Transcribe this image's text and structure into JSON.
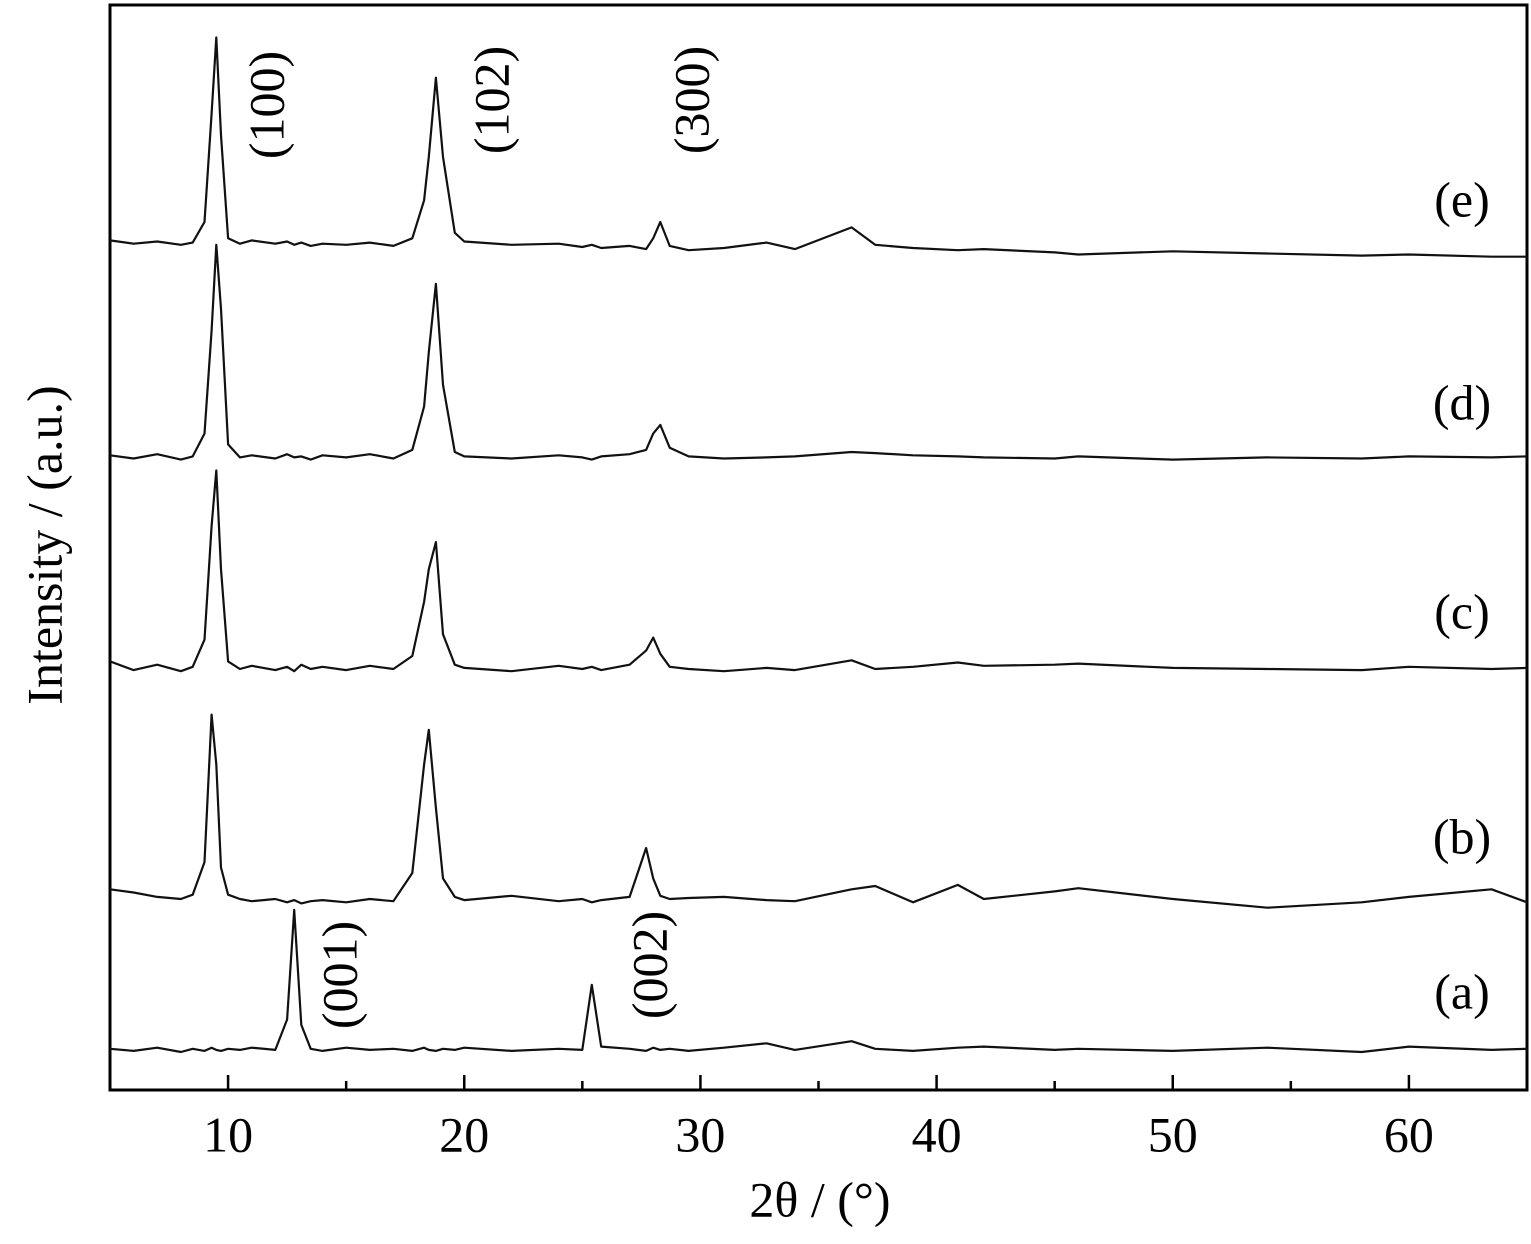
{
  "chart_data": {
    "type": "line",
    "x_label": "2θ / (°)",
    "y_label": "Intensity / (a.u.)",
    "x": [
      5,
      6,
      7,
      8,
      8.5,
      9,
      9.3,
      9.5,
      9.7,
      10,
      10.5,
      11,
      12,
      12.5,
      12.8,
      13.1,
      13.5,
      14,
      15,
      16,
      17,
      17.8,
      18.3,
      18.5,
      18.8,
      19.1,
      19.6,
      20,
      22,
      24,
      25,
      25.4,
      25.8,
      27,
      27.7,
      28,
      28.3,
      28.7,
      29.5,
      31,
      32.8,
      34,
      36.4,
      37.4,
      39,
      40.9,
      42,
      45,
      46,
      50,
      54,
      58,
      60,
      63.5,
      65
    ],
    "series": [
      {
        "name": "(a)",
        "color": "#111111",
        "values": [
          3.8,
          3.6,
          3.9,
          3.5,
          3.8,
          3.6,
          3.9,
          3.7,
          3.6,
          3.8,
          3.7,
          3.9,
          3.7,
          6.5,
          16.6,
          6.0,
          3.8,
          3.6,
          3.9,
          3.7,
          3.8,
          3.6,
          3.9,
          3.7,
          3.6,
          3.8,
          3.7,
          3.9,
          3.6,
          3.8,
          3.7,
          9.7,
          4.0,
          3.8,
          3.6,
          3.9,
          3.7,
          3.8,
          3.6,
          3.9,
          4.3,
          3.7,
          4.5,
          3.8,
          3.6,
          3.9,
          4.0,
          3.7,
          3.8,
          3.6,
          3.9,
          3.5,
          4.0,
          3.7,
          3.8
        ]
      },
      {
        "name": "(b)",
        "color": "#111111",
        "values": [
          18.5,
          18.2,
          17.8,
          17.6,
          18.0,
          21.0,
          34.6,
          30.0,
          20.5,
          18.0,
          17.6,
          17.4,
          17.6,
          17.3,
          17.5,
          17.2,
          17.4,
          17.5,
          17.3,
          17.6,
          17.4,
          20.0,
          30.0,
          33.2,
          26.0,
          19.5,
          17.8,
          17.5,
          17.9,
          17.4,
          17.6,
          17.3,
          17.5,
          17.8,
          22.3,
          19.5,
          17.9,
          17.6,
          17.7,
          17.8,
          17.5,
          17.4,
          18.5,
          18.8,
          17.3,
          18.9,
          17.6,
          18.3,
          18.6,
          17.6,
          16.8,
          17.3,
          17.8,
          18.5,
          17.3
        ]
      },
      {
        "name": "(c)",
        "color": "#111111",
        "values": [
          39.5,
          38.7,
          39.2,
          38.6,
          39.0,
          41.5,
          52.0,
          57.1,
          48.0,
          39.5,
          38.8,
          39.1,
          38.7,
          39.0,
          38.6,
          39.2,
          38.8,
          39.0,
          38.7,
          39.1,
          38.8,
          40.0,
          45.0,
          48.0,
          50.5,
          42.0,
          39.2,
          38.9,
          38.6,
          39.1,
          38.8,
          39.0,
          38.7,
          39.2,
          40.5,
          41.7,
          40.2,
          39.0,
          38.8,
          38.6,
          38.9,
          38.7,
          39.6,
          38.8,
          39.0,
          39.4,
          39.1,
          39.2,
          39.3,
          38.9,
          38.8,
          38.7,
          39.0,
          38.8,
          38.9
        ]
      },
      {
        "name": "(d)",
        "color": "#111111",
        "values": [
          58.5,
          58.2,
          58.6,
          58.1,
          58.4,
          60.5,
          70.0,
          77.9,
          72.0,
          59.5,
          58.3,
          58.5,
          58.2,
          58.6,
          58.3,
          58.4,
          58.1,
          58.5,
          58.3,
          58.6,
          58.2,
          59.0,
          63.0,
          68.0,
          74.3,
          65.0,
          58.8,
          58.4,
          58.2,
          58.5,
          58.3,
          58.1,
          58.4,
          58.6,
          59.0,
          60.5,
          61.3,
          59.2,
          58.4,
          58.2,
          58.3,
          58.4,
          58.8,
          58.7,
          58.5,
          58.4,
          58.3,
          58.2,
          58.4,
          58.1,
          58.3,
          58.2,
          58.4,
          58.3,
          58.4
        ]
      },
      {
        "name": "(e)",
        "color": "#111111",
        "values": [
          78.3,
          78.0,
          78.2,
          77.9,
          78.1,
          80.0,
          90.0,
          97.0,
          88.0,
          78.5,
          78.0,
          78.3,
          78.0,
          78.2,
          77.9,
          78.1,
          77.8,
          78.0,
          77.9,
          78.1,
          77.8,
          78.5,
          82.0,
          86.0,
          93.3,
          86.0,
          79.0,
          78.2,
          77.9,
          78.0,
          77.7,
          77.9,
          77.6,
          77.8,
          77.5,
          78.5,
          80.0,
          77.8,
          77.4,
          77.6,
          78.1,
          77.5,
          79.5,
          77.9,
          77.6,
          77.4,
          77.5,
          77.2,
          77.0,
          77.3,
          77.1,
          76.9,
          77.0,
          76.8,
          76.8
        ]
      }
    ],
    "annotations": [
      "(100)",
      "(102)",
      "(300)",
      "(001)",
      "(002)"
    ],
    "xlim": [
      5,
      65
    ],
    "xticks": [
      10,
      20,
      30,
      40,
      50,
      60
    ],
    "xminor_ticks": [
      15,
      25,
      35,
      45,
      55
    ],
    "ylim": [
      0,
      100
    ]
  }
}
